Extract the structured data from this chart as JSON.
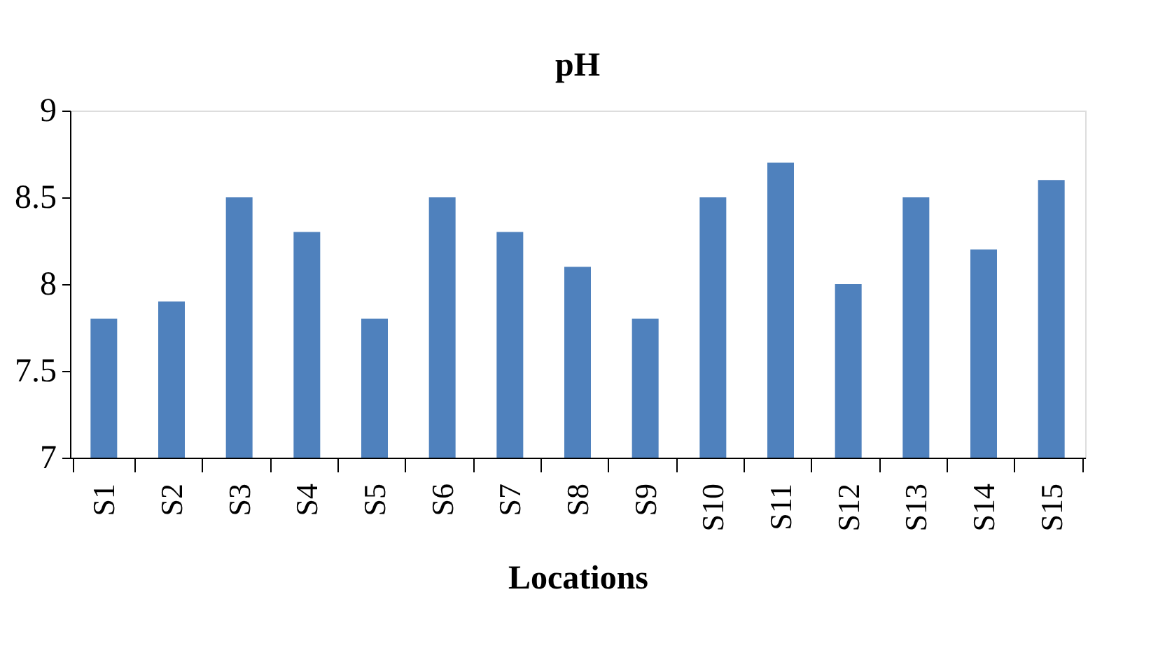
{
  "chart_data": {
    "type": "bar",
    "title": "pH",
    "xlabel": "Locations",
    "categories": [
      "S1",
      "S2",
      "S3",
      "S4",
      "S5",
      "S6",
      "S7",
      "S8",
      "S9",
      "S10",
      "S11",
      "S12",
      "S13",
      "S14",
      "S15"
    ],
    "values": [
      7.8,
      7.9,
      8.5,
      8.3,
      7.8,
      8.5,
      8.3,
      8.1,
      7.8,
      8.5,
      8.7,
      8.0,
      8.5,
      8.2,
      8.6
    ],
    "color": "#4f81bd",
    "ylim": [
      7,
      9
    ],
    "yticks": [
      7,
      7.5,
      8,
      8.5,
      9
    ],
    "grid": false
  }
}
